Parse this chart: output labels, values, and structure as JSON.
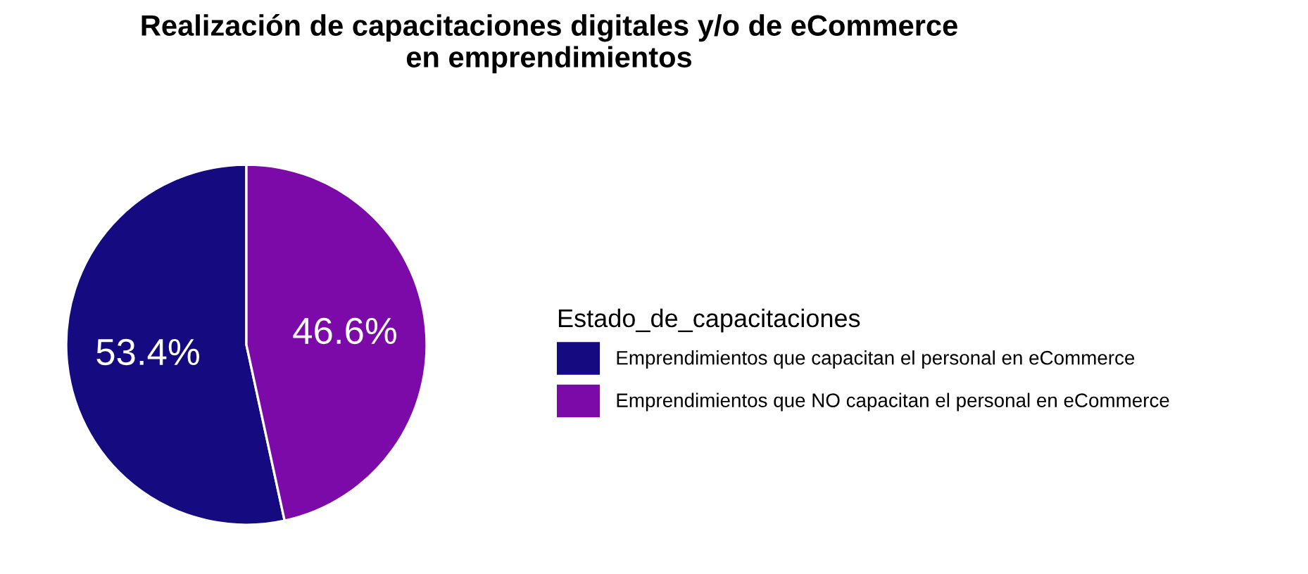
{
  "chart_data": {
    "type": "pie",
    "title": "Realización de capacitaciones digitales y/o de eCommerce\nen emprendimientos",
    "legend_title": "Estado_de_capacitaciones",
    "categories": [
      "Emprendimientos que capacitan el personal en eCommerce",
      "Emprendimientos que NO capacitan el personal en eCommerce"
    ],
    "values": [
      53.4,
      46.6
    ],
    "colors": [
      "#150a80",
      "#7b0aa8"
    ],
    "value_labels": [
      "53.4%",
      "46.6%"
    ],
    "legend": "right"
  }
}
